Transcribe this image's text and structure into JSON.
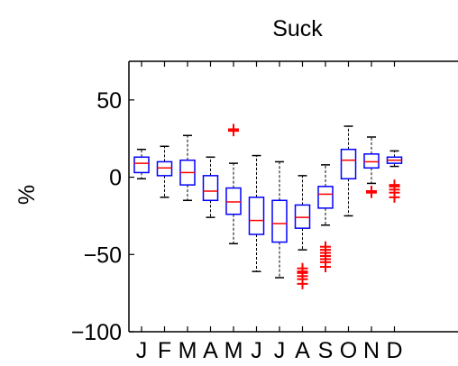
{
  "chart_data": {
    "type": "box",
    "title": "Suck",
    "xlabel": "",
    "ylabel": "%",
    "ylim": [
      -100,
      75
    ],
    "yticks": [
      -100,
      -50,
      0,
      50
    ],
    "ytick_labels": [
      "−100",
      "−50",
      "0",
      "50"
    ],
    "categories": [
      "J",
      "F",
      "M",
      "A",
      "M",
      "J",
      "J",
      "A",
      "S",
      "O",
      "N",
      "D"
    ],
    "colors": {
      "box": "#0000ff",
      "median": "#ff0000",
      "whisker": "#000000",
      "outlier": "#ff0000"
    },
    "boxes": [
      {
        "q1": 3,
        "median": 9,
        "q3": 13,
        "whisker_low": -1,
        "whisker_high": 18,
        "outliers": []
      },
      {
        "q1": 1,
        "median": 6,
        "q3": 10,
        "whisker_low": -13,
        "whisker_high": 20,
        "outliers": []
      },
      {
        "q1": -5,
        "median": 3,
        "q3": 11,
        "whisker_low": -15,
        "whisker_high": 27,
        "outliers": []
      },
      {
        "q1": -15,
        "median": -9,
        "q3": 1,
        "whisker_low": -26,
        "whisker_high": 13,
        "outliers": []
      },
      {
        "q1": -24,
        "median": -16,
        "q3": -7,
        "whisker_low": -43,
        "whisker_high": 9,
        "outliers": [
          31,
          30
        ]
      },
      {
        "q1": -37,
        "median": -28,
        "q3": -13,
        "whisker_low": -61,
        "whisker_high": 14,
        "outliers": []
      },
      {
        "q1": -42,
        "median": -30,
        "q3": -15,
        "whisker_low": -65,
        "whisker_high": 10,
        "outliers": []
      },
      {
        "q1": -33,
        "median": -26,
        "q3": -18,
        "whisker_low": -47,
        "whisker_high": 1,
        "outliers": [
          -59,
          -61,
          -62,
          -64,
          -66,
          -69
        ]
      },
      {
        "q1": -20,
        "median": -11,
        "q3": -6,
        "whisker_low": -31,
        "whisker_high": 8,
        "outliers": [
          -45,
          -47,
          -49,
          -51,
          -53,
          -55,
          -58
        ]
      },
      {
        "q1": -1,
        "median": 11,
        "q3": 18,
        "whisker_low": -25,
        "whisker_high": 33,
        "outliers": []
      },
      {
        "q1": 6,
        "median": 10,
        "q3": 15,
        "whisker_low": -4,
        "whisker_high": 26,
        "outliers": [
          -9,
          -10
        ]
      },
      {
        "q1": 9,
        "median": 11,
        "q3": 13,
        "whisker_low": 7,
        "whisker_high": 17,
        "outliers": [
          -5,
          -6,
          -8,
          -10,
          -13
        ]
      }
    ]
  }
}
